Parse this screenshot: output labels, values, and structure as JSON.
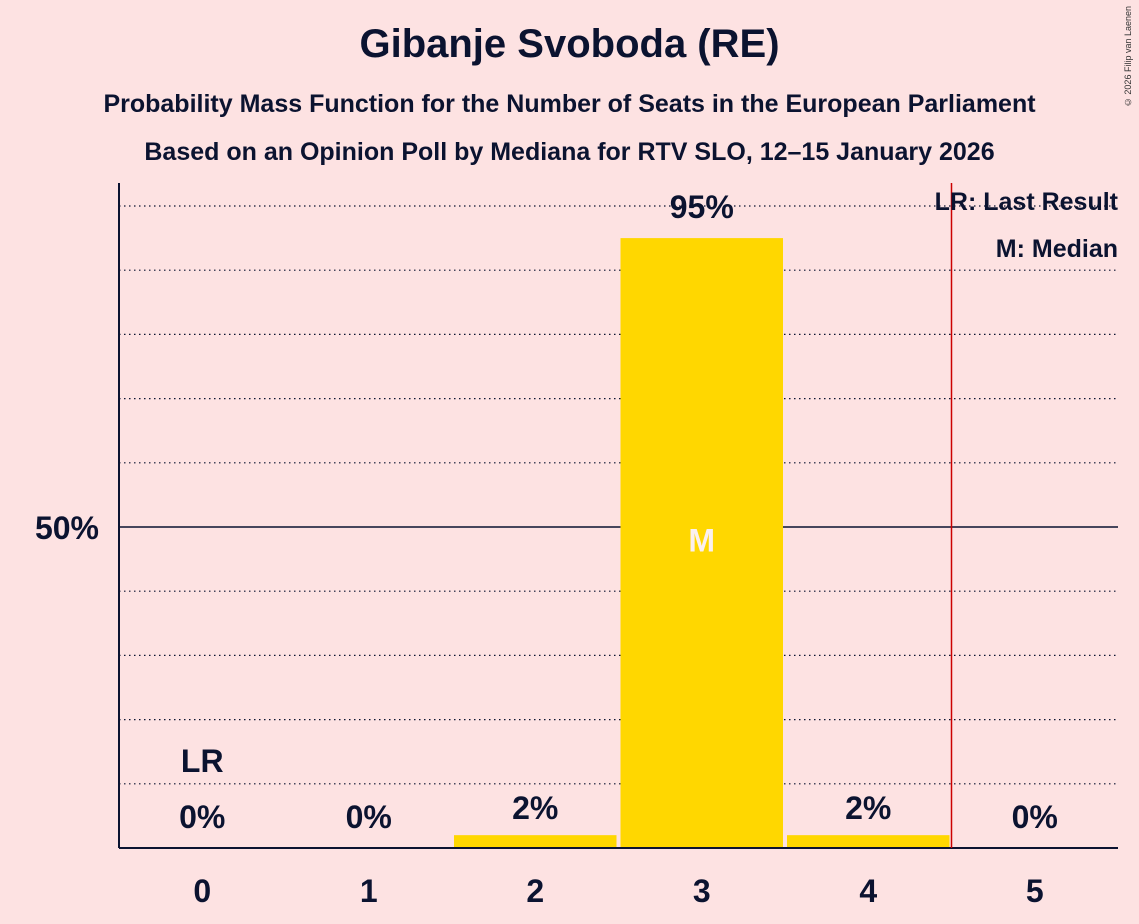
{
  "header": {
    "title": "Gibanje Svoboda (RE)",
    "subtitle": "Probability Mass Function for the Number of Seats in the European Parliament",
    "source": "Based on an Opinion Poll by Mediana for RTV SLO, 12–15 January 2026",
    "copyright": "© 2026 Filip van Laenen"
  },
  "legend": {
    "lr": "LR: Last Result",
    "m": "M: Median"
  },
  "colors": {
    "background": "#fde2e2",
    "bar": "#ffd700",
    "last_result_line": "#cc0000",
    "text": "#0b1330"
  },
  "chart_data": {
    "type": "bar",
    "title": "Gibanje Svoboda (RE)",
    "xlabel": "",
    "ylabel": "",
    "categories": [
      "0",
      "1",
      "2",
      "3",
      "4",
      "5"
    ],
    "values": [
      0,
      0,
      2,
      95,
      2,
      0
    ],
    "value_labels": [
      "0%",
      "0%",
      "2%",
      "95%",
      "2%",
      "0%"
    ],
    "ylim": [
      0,
      100
    ],
    "y_tick_label": "50%",
    "y_tick_value": 50,
    "gridlines_dotted_every": 10,
    "median_seats": 3,
    "median_marker": "M",
    "last_result_seats": 0,
    "last_result_marker": "LR",
    "majority_line_seats": 4.5
  }
}
